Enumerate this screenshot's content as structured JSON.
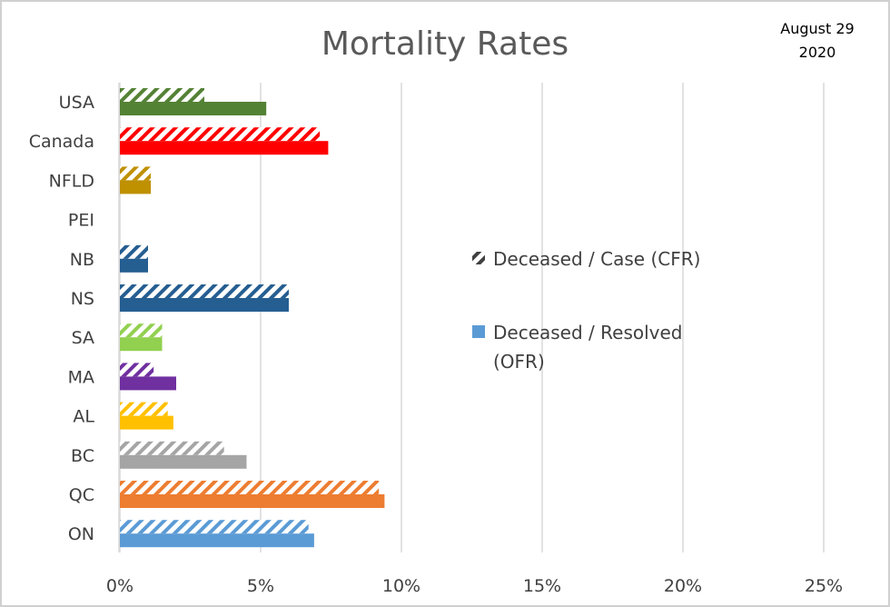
{
  "chart_data": {
    "type": "bar",
    "orientation": "horizontal",
    "title": "Mortality Rates",
    "annotation": [
      "August 29",
      "2020"
    ],
    "xlabel": "",
    "ylabel": "",
    "xlim": [
      0,
      25
    ],
    "xticks": [
      0,
      5,
      10,
      15,
      20,
      25
    ],
    "xtick_labels": [
      "0%",
      "5%",
      "10%",
      "15%",
      "20%",
      "25%"
    ],
    "grid": true,
    "legend_position": "center-right",
    "categories": [
      "USA",
      "Canada",
      "NFLD",
      "PEI",
      "NB",
      "NS",
      "SA",
      "MA",
      "AL",
      "BC",
      "QC",
      "ON"
    ],
    "category_colors": [
      "#548235",
      "#ff0000",
      "#bf9000",
      "#7f7f7f",
      "#255e91",
      "#255e91",
      "#92d050",
      "#7030a0",
      "#ffc000",
      "#a5a5a5",
      "#ed7d31",
      "#5b9bd5"
    ],
    "series": [
      {
        "name": "Deceased / Case (CFR)",
        "style": "hatched",
        "values": [
          3.0,
          7.1,
          1.1,
          0.0,
          1.0,
          6.0,
          1.5,
          1.2,
          1.7,
          3.7,
          9.2,
          6.7
        ]
      },
      {
        "name": "Deceased / Resolved (OFR)",
        "style": "solid",
        "values": [
          5.2,
          7.4,
          1.1,
          0.0,
          1.0,
          6.0,
          1.5,
          2.0,
          1.9,
          4.5,
          9.4,
          6.9
        ]
      }
    ]
  },
  "legend": {
    "cfr_label": "Deceased / Case (CFR)",
    "ofr_label_line1": "Deceased / Resolved",
    "ofr_label_line2": "(OFR)",
    "cfr_swatch_color": "#404040",
    "ofr_swatch_color": "#5b9bd5"
  }
}
